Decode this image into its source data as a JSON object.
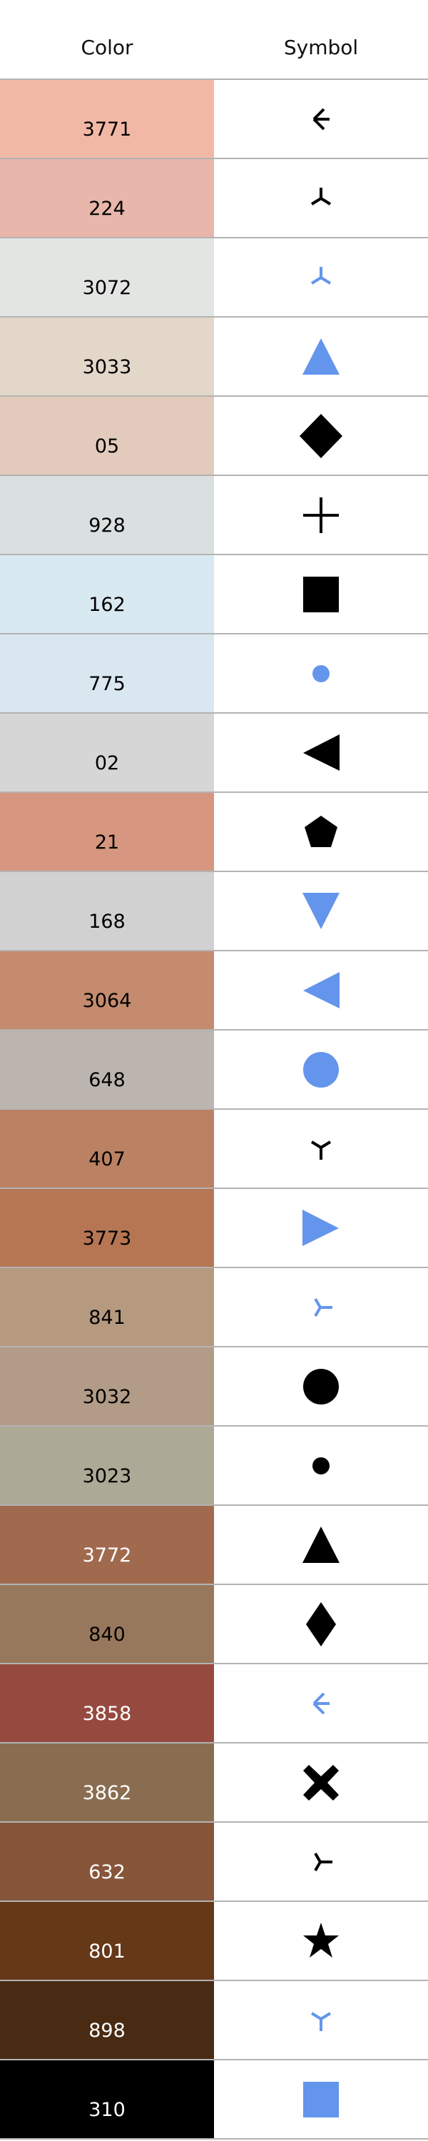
{
  "header": {
    "color_label": "Color",
    "symbol_label": "Symbol"
  },
  "colors": {
    "black": "#000000",
    "blue": "#6495ed"
  },
  "rows": [
    {
      "code": "3771",
      "swatch": "#f2b8a6",
      "text_color": "#000000",
      "symbol": "tri-left-icon",
      "symbol_color": "#000000"
    },
    {
      "code": "224",
      "swatch": "#e8b6aa",
      "text_color": "#000000",
      "symbol": "tri-down-icon",
      "symbol_color": "#000000"
    },
    {
      "code": "3072",
      "swatch": "#e3e5e3",
      "text_color": "#000000",
      "symbol": "tri-down-icon",
      "symbol_color": "#6495ed"
    },
    {
      "code": "3033",
      "swatch": "#e3d7ca",
      "text_color": "#000000",
      "symbol": "triangle-up-icon",
      "symbol_color": "#6495ed"
    },
    {
      "code": "05",
      "swatch": "#e2cbbd",
      "text_color": "#000000",
      "symbol": "diamond-icon",
      "symbol_color": "#000000"
    },
    {
      "code": "928",
      "swatch": "#dadfdf",
      "text_color": "#000000",
      "symbol": "plus-icon",
      "symbol_color": "#000000"
    },
    {
      "code": "162",
      "swatch": "#d9e9f2",
      "text_color": "#000000",
      "symbol": "square-icon",
      "symbol_color": "#000000"
    },
    {
      "code": "775",
      "swatch": "#d9e7f0",
      "text_color": "#000000",
      "symbol": "point-icon",
      "symbol_color": "#6495ed"
    },
    {
      "code": "02",
      "swatch": "#d6d6d6",
      "text_color": "#000000",
      "symbol": "triangle-left-icon",
      "symbol_color": "#000000"
    },
    {
      "code": "21",
      "swatch": "#d7967f",
      "text_color": "#000000",
      "symbol": "pentagon-icon",
      "symbol_color": "#000000"
    },
    {
      "code": "168",
      "swatch": "#d1d1d1",
      "text_color": "#000000",
      "symbol": "triangle-down-icon",
      "symbol_color": "#6495ed"
    },
    {
      "code": "3064",
      "swatch": "#c48b6e",
      "text_color": "#000000",
      "symbol": "triangle-left-icon",
      "symbol_color": "#6495ed"
    },
    {
      "code": "648",
      "swatch": "#bcb4ae",
      "text_color": "#000000",
      "symbol": "circle-icon",
      "symbol_color": "#6495ed"
    },
    {
      "code": "407",
      "swatch": "#bb8163",
      "text_color": "#000000",
      "symbol": "tri-up-icon",
      "symbol_color": "#000000"
    },
    {
      "code": "3773",
      "swatch": "#b67654",
      "text_color": "#000000",
      "symbol": "triangle-right-icon",
      "symbol_color": "#6495ed"
    },
    {
      "code": "841",
      "swatch": "#b69a7f",
      "text_color": "#000000",
      "symbol": "tri-right-icon",
      "symbol_color": "#6495ed"
    },
    {
      "code": "3032",
      "swatch": "#b29c87",
      "text_color": "#000000",
      "symbol": "circle-icon",
      "symbol_color": "#000000"
    },
    {
      "code": "3023",
      "swatch": "#acaa97",
      "text_color": "#000000",
      "symbol": "point-icon",
      "symbol_color": "#000000"
    },
    {
      "code": "3772",
      "swatch": "#a16a4f",
      "text_color": "#ffffff",
      "symbol": "triangle-up-icon",
      "symbol_color": "#000000"
    },
    {
      "code": "840",
      "swatch": "#98785d",
      "text_color": "#000000",
      "symbol": "thin-diamond-icon",
      "symbol_color": "#000000"
    },
    {
      "code": "3858",
      "swatch": "#964a3f",
      "text_color": "#ffffff",
      "symbol": "tri-left-icon",
      "symbol_color": "#6495ed"
    },
    {
      "code": "3862",
      "swatch": "#8a6d50",
      "text_color": "#ffffff",
      "symbol": "x-filled-icon",
      "symbol_color": "#000000"
    },
    {
      "code": "632",
      "swatch": "#87553a",
      "text_color": "#ffffff",
      "symbol": "tri-right-icon",
      "symbol_color": "#000000"
    },
    {
      "code": "801",
      "swatch": "#653818",
      "text_color": "#ffffff",
      "symbol": "star-icon",
      "symbol_color": "#000000"
    },
    {
      "code": "898",
      "swatch": "#492a13",
      "text_color": "#ffffff",
      "symbol": "tri-up-icon",
      "symbol_color": "#6495ed"
    },
    {
      "code": "310",
      "swatch": "#000000",
      "text_color": "#ffffff",
      "symbol": "square-icon",
      "symbol_color": "#6495ed"
    }
  ]
}
